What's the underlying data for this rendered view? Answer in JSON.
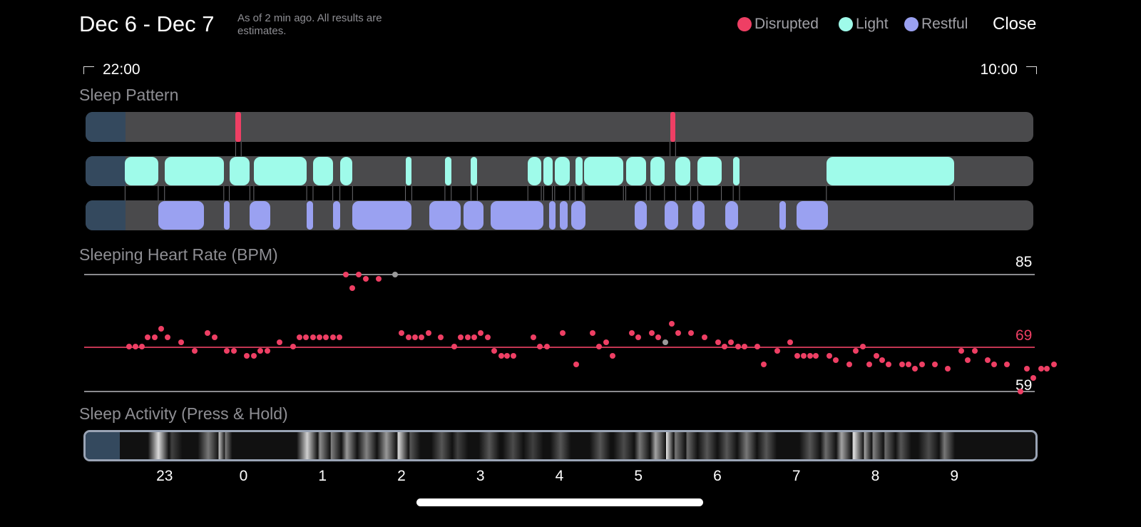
{
  "header": {
    "date_range": "Dec 6 - Dec 7",
    "note": "As of 2 min ago. All results are estimates.",
    "close_label": "Close"
  },
  "legend": [
    {
      "label": "Disrupted",
      "color": "#ee3f64"
    },
    {
      "label": "Light",
      "color": "#9ffbea"
    },
    {
      "label": "Restful",
      "color": "#9aa1f1"
    }
  ],
  "time_range": {
    "start": "22:00",
    "end": "10:00"
  },
  "sleep_pattern": {
    "title": "Sleep Pattern",
    "window_hours": [
      22.0,
      34.0
    ],
    "tracking_start_hour": 22.5,
    "disrupted": [
      [
        23.9,
        23.97
      ],
      [
        29.4,
        29.47
      ]
    ],
    "light": [
      [
        22.5,
        22.92
      ],
      [
        23.0,
        23.75
      ],
      [
        23.82,
        24.08
      ],
      [
        24.13,
        24.8
      ],
      [
        24.88,
        25.13
      ],
      [
        25.22,
        25.38
      ],
      [
        26.05,
        26.13
      ],
      [
        26.55,
        26.63
      ],
      [
        26.88,
        26.96
      ],
      [
        27.6,
        27.77
      ],
      [
        27.8,
        27.91
      ],
      [
        27.94,
        28.13
      ],
      [
        28.2,
        28.29
      ],
      [
        28.31,
        28.81
      ],
      [
        28.84,
        29.1
      ],
      [
        29.15,
        29.33
      ],
      [
        29.47,
        29.66
      ],
      [
        29.75,
        30.05
      ],
      [
        30.2,
        30.28
      ],
      [
        31.38,
        33.0
      ]
    ],
    "restful": [
      [
        22.92,
        23.5
      ],
      [
        23.75,
        23.82
      ],
      [
        24.08,
        24.34
      ],
      [
        24.8,
        24.88
      ],
      [
        25.13,
        25.22
      ],
      [
        25.38,
        26.13
      ],
      [
        26.35,
        26.75
      ],
      [
        26.79,
        27.04
      ],
      [
        27.13,
        27.8
      ],
      [
        27.87,
        27.95
      ],
      [
        28.0,
        28.1
      ],
      [
        28.15,
        28.33
      ],
      [
        28.95,
        29.11
      ],
      [
        29.33,
        29.5
      ],
      [
        29.68,
        29.84
      ],
      [
        30.1,
        30.26
      ],
      [
        30.79,
        30.87
      ],
      [
        31.0,
        31.4
      ]
    ]
  },
  "heart_rate": {
    "title": "Sleeping Heart Rate (BPM)",
    "max_label": "85",
    "avg_label": "69",
    "min_label": "59",
    "max": 85,
    "avg": 69,
    "min": 59,
    "colors": {
      "dot": "#ee3f64",
      "current": "#9a9a9a"
    },
    "points": [
      [
        22.55,
        69
      ],
      [
        22.63,
        69
      ],
      [
        22.71,
        69
      ],
      [
        22.79,
        71
      ],
      [
        22.88,
        71
      ],
      [
        22.96,
        73
      ],
      [
        23.04,
        71
      ],
      [
        23.21,
        70
      ],
      [
        23.38,
        68
      ],
      [
        23.54,
        72
      ],
      [
        23.63,
        71
      ],
      [
        23.79,
        68
      ],
      [
        23.88,
        68
      ],
      [
        24.04,
        67
      ],
      [
        24.13,
        67
      ],
      [
        24.21,
        68
      ],
      [
        24.3,
        68
      ],
      [
        24.46,
        70
      ],
      [
        24.63,
        69
      ],
      [
        24.71,
        71
      ],
      [
        24.79,
        71
      ],
      [
        24.88,
        71
      ],
      [
        24.96,
        71
      ],
      [
        25.04,
        71
      ],
      [
        25.13,
        71
      ],
      [
        25.21,
        71
      ],
      [
        25.3,
        85
      ],
      [
        25.38,
        82
      ],
      [
        25.46,
        85
      ],
      [
        25.55,
        84
      ],
      [
        25.71,
        84
      ],
      [
        26.0,
        72
      ],
      [
        26.09,
        71
      ],
      [
        26.17,
        71
      ],
      [
        26.25,
        71
      ],
      [
        26.34,
        72
      ],
      [
        26.5,
        71
      ],
      [
        26.67,
        69
      ],
      [
        26.75,
        71
      ],
      [
        26.84,
        71
      ],
      [
        26.92,
        71
      ],
      [
        27.0,
        72
      ],
      [
        27.09,
        71
      ],
      [
        27.17,
        68
      ],
      [
        27.26,
        67
      ],
      [
        27.34,
        67
      ],
      [
        27.42,
        67
      ],
      [
        27.67,
        71
      ],
      [
        27.75,
        69
      ],
      [
        27.84,
        69
      ],
      [
        28.04,
        72
      ],
      [
        28.21,
        65
      ],
      [
        28.42,
        72
      ],
      [
        28.5,
        69
      ],
      [
        28.59,
        70
      ],
      [
        28.67,
        67
      ],
      [
        28.92,
        72
      ],
      [
        29.0,
        71
      ],
      [
        29.17,
        72
      ],
      [
        29.25,
        71
      ],
      [
        29.42,
        74
      ],
      [
        29.5,
        72
      ],
      [
        29.67,
        72
      ],
      [
        29.84,
        71
      ],
      [
        30.01,
        70
      ],
      [
        30.09,
        69
      ],
      [
        30.17,
        70
      ],
      [
        30.26,
        69
      ],
      [
        30.34,
        69
      ],
      [
        30.51,
        69
      ],
      [
        30.59,
        65
      ],
      [
        30.76,
        68
      ],
      [
        30.92,
        70
      ],
      [
        31.01,
        67
      ],
      [
        31.09,
        67
      ],
      [
        31.17,
        67
      ],
      [
        31.25,
        67
      ],
      [
        31.42,
        67
      ],
      [
        31.5,
        66
      ],
      [
        31.67,
        65
      ],
      [
        31.75,
        68
      ],
      [
        31.84,
        69
      ],
      [
        31.92,
        65
      ],
      [
        32.01,
        67
      ],
      [
        32.09,
        66
      ],
      [
        32.17,
        65
      ],
      [
        32.34,
        65
      ],
      [
        32.42,
        65
      ],
      [
        32.5,
        64
      ],
      [
        32.59,
        65
      ],
      [
        32.75,
        65
      ],
      [
        32.92,
        64
      ],
      [
        33.09,
        68
      ],
      [
        33.17,
        66
      ],
      [
        33.26,
        68
      ],
      [
        33.42,
        66
      ],
      [
        33.5,
        65
      ],
      [
        33.67,
        65
      ],
      [
        33.84,
        59
      ],
      [
        33.92,
        64
      ],
      [
        34.0,
        62
      ],
      [
        34.1,
        64
      ],
      [
        34.17,
        64
      ],
      [
        34.26,
        65
      ]
    ],
    "current_points": [
      [
        25.92,
        85
      ],
      [
        29.34,
        70
      ]
    ]
  },
  "sleep_activity": {
    "title": "Sleep Activity (Press & Hold)",
    "peaks": [
      [
        22.92,
        0.9
      ],
      [
        23.09,
        0.2
      ],
      [
        23.55,
        0.45
      ],
      [
        23.63,
        0.8
      ],
      [
        23.72,
        0.5
      ],
      [
        24.8,
        0.85
      ],
      [
        24.96,
        0.55
      ],
      [
        25.1,
        0.5
      ],
      [
        25.3,
        0.6
      ],
      [
        25.55,
        0.5
      ],
      [
        25.8,
        0.6
      ],
      [
        25.95,
        0.9
      ],
      [
        26.1,
        0.3
      ],
      [
        26.5,
        0.3
      ],
      [
        26.7,
        0.2
      ],
      [
        27.1,
        0.3
      ],
      [
        27.4,
        0.25
      ],
      [
        27.65,
        0.2
      ],
      [
        28.0,
        0.3
      ],
      [
        28.5,
        0.3
      ],
      [
        28.8,
        0.25
      ],
      [
        29.0,
        0.45
      ],
      [
        29.2,
        0.65
      ],
      [
        29.3,
        1.0
      ],
      [
        29.45,
        0.45
      ],
      [
        29.6,
        0.4
      ],
      [
        29.85,
        0.3
      ],
      [
        30.1,
        0.3
      ],
      [
        30.35,
        0.45
      ],
      [
        30.6,
        0.3
      ],
      [
        31.15,
        0.3
      ],
      [
        31.35,
        0.4
      ],
      [
        31.55,
        0.65
      ],
      [
        31.7,
        0.95
      ],
      [
        31.8,
        0.7
      ],
      [
        31.95,
        0.5
      ],
      [
        32.1,
        0.4
      ],
      [
        32.3,
        0.3
      ],
      [
        32.65,
        0.25
      ],
      [
        32.85,
        0.45
      ]
    ],
    "ticks": [
      {
        "label": "23",
        "hour": 23
      },
      {
        "label": "0",
        "hour": 24
      },
      {
        "label": "1",
        "hour": 25
      },
      {
        "label": "2",
        "hour": 26
      },
      {
        "label": "3",
        "hour": 27
      },
      {
        "label": "4",
        "hour": 28
      },
      {
        "label": "5",
        "hour": 29
      },
      {
        "label": "6",
        "hour": 30
      },
      {
        "label": "7",
        "hour": 31
      },
      {
        "label": "8",
        "hour": 32
      },
      {
        "label": "9",
        "hour": 33
      }
    ]
  }
}
